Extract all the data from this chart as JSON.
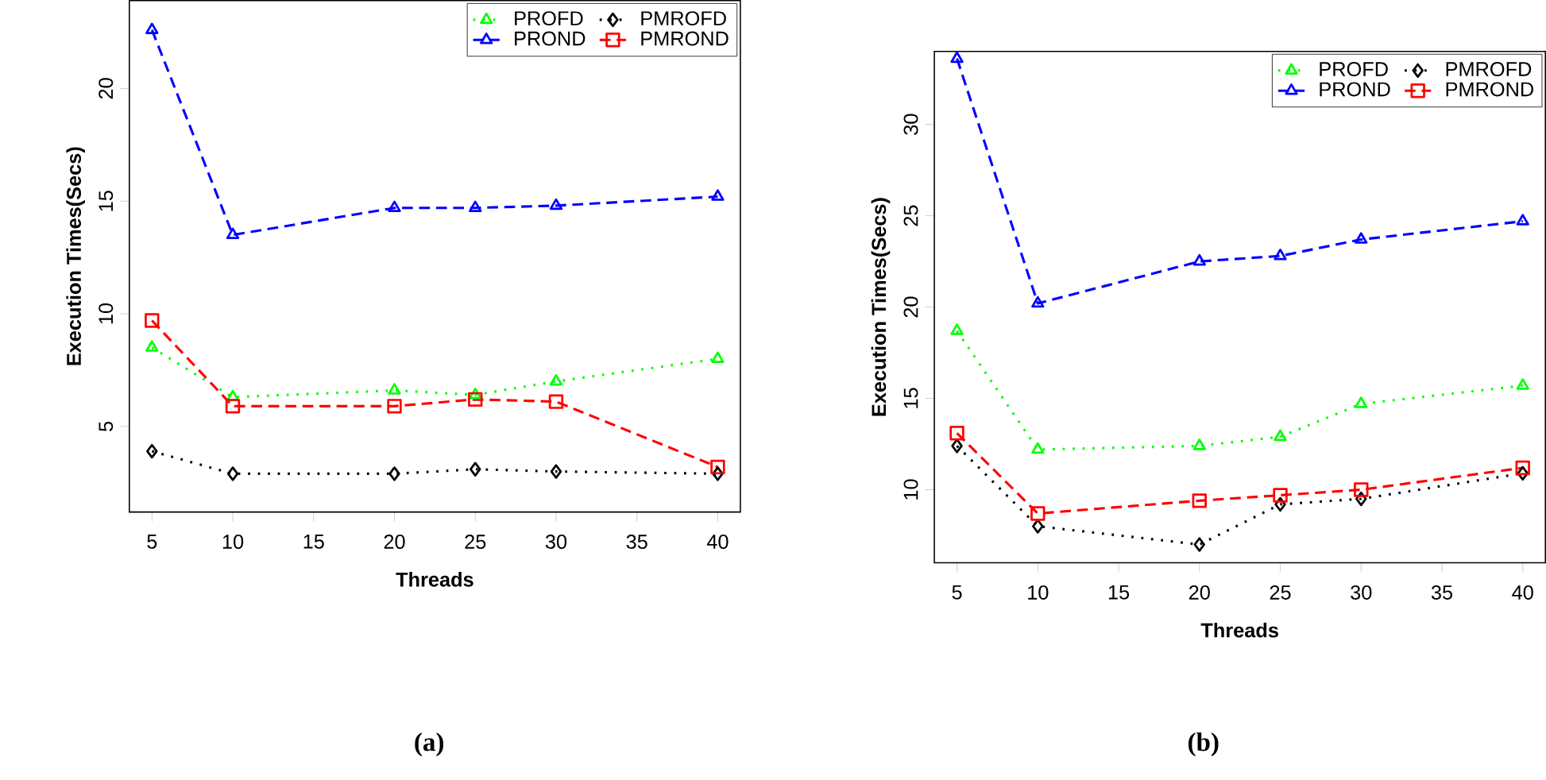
{
  "chart_data": [
    {
      "type": "line",
      "xlabel": "Threads",
      "ylabel": "Execution Times(Secs)",
      "annotations": [
        "(a)"
      ],
      "x": [
        5,
        10,
        20,
        25,
        30,
        40
      ],
      "xlim": [
        3.6,
        41.4
      ],
      "xticks": [
        5,
        10,
        15,
        20,
        25,
        30,
        35,
        40
      ],
      "ylim": [
        1.2,
        23.9
      ],
      "yticks": [
        5,
        10,
        15,
        20
      ],
      "legend": "top right",
      "grid": false,
      "series": [
        {
          "name": "PROFD",
          "color": "#00ff00",
          "marker": "triangle",
          "line_style": "dotted",
          "values": [
            8.5,
            6.3,
            6.6,
            6.4,
            7.0,
            8.0
          ]
        },
        {
          "name": "PMROFD",
          "color": "#000000",
          "marker": "diamond",
          "line_style": "dotted",
          "values": [
            3.9,
            2.9,
            2.9,
            3.1,
            3.0,
            2.9
          ]
        },
        {
          "name": "PROND",
          "color": "#0000ff",
          "marker": "triangle",
          "line_style": "dashed",
          "values": [
            22.6,
            13.5,
            14.7,
            14.7,
            14.8,
            15.2
          ]
        },
        {
          "name": "PMROND",
          "color": "#ff0000",
          "marker": "square",
          "line_style": "dashed",
          "values": [
            9.7,
            5.9,
            5.9,
            6.2,
            6.1,
            3.2
          ]
        }
      ]
    },
    {
      "type": "line",
      "xlabel": "Threads",
      "ylabel": "Execution Times(Secs)",
      "annotations": [
        "(b)"
      ],
      "x": [
        5,
        10,
        20,
        25,
        30,
        40
      ],
      "xlim": [
        3.6,
        41.4
      ],
      "xticks": [
        5,
        10,
        15,
        20,
        25,
        30,
        35,
        40
      ],
      "ylim": [
        6.0,
        34.0
      ],
      "yticks": [
        10,
        15,
        20,
        25,
        30
      ],
      "legend": "top right",
      "grid": false,
      "series": [
        {
          "name": "PROFD",
          "color": "#00ff00",
          "marker": "triangle",
          "line_style": "dotted",
          "values": [
            18.7,
            12.2,
            12.4,
            12.9,
            14.7,
            15.7
          ]
        },
        {
          "name": "PMROFD",
          "color": "#000000",
          "marker": "diamond",
          "line_style": "dotted",
          "values": [
            12.4,
            8.0,
            7.0,
            9.2,
            9.5,
            10.9
          ]
        },
        {
          "name": "PROND",
          "color": "#0000ff",
          "marker": "triangle",
          "line_style": "dashed",
          "values": [
            33.6,
            20.2,
            22.5,
            22.8,
            23.7,
            24.7
          ]
        },
        {
          "name": "PMROND",
          "color": "#ff0000",
          "marker": "square",
          "line_style": "dashed",
          "values": [
            13.1,
            8.7,
            9.4,
            9.7,
            10.0,
            11.2
          ]
        }
      ]
    }
  ]
}
